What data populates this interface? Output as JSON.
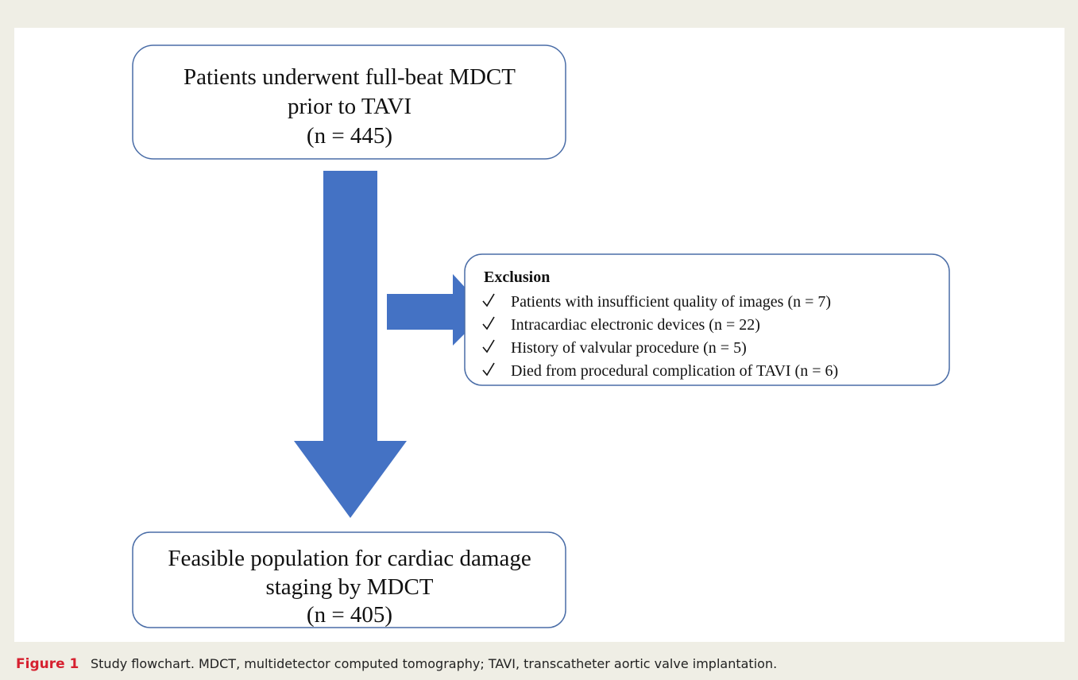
{
  "nodes": [
    {
      "lines": [
        "Patients underwent full-beat MDCT",
        "prior to TAVI",
        "(n = 445)"
      ]
    },
    {
      "title": "Exclusion",
      "items": [
        "Patients with insufficient quality of images (n = 7)",
        "Intracardiac electronic devices (n = 22)",
        "History of valvular procedure (n = 5)",
        "Died from procedural complication of TAVI (n = 6)"
      ]
    },
    {
      "lines": [
        "Feasible population for cardiac damage",
        "staging by MDCT",
        "(n = 405)"
      ]
    }
  ],
  "caption": {
    "label": "Figure 1",
    "text": "Study flowchart. MDCT, multidetector computed tomography; TAVI, transcatheter aortic valve implantation."
  }
}
